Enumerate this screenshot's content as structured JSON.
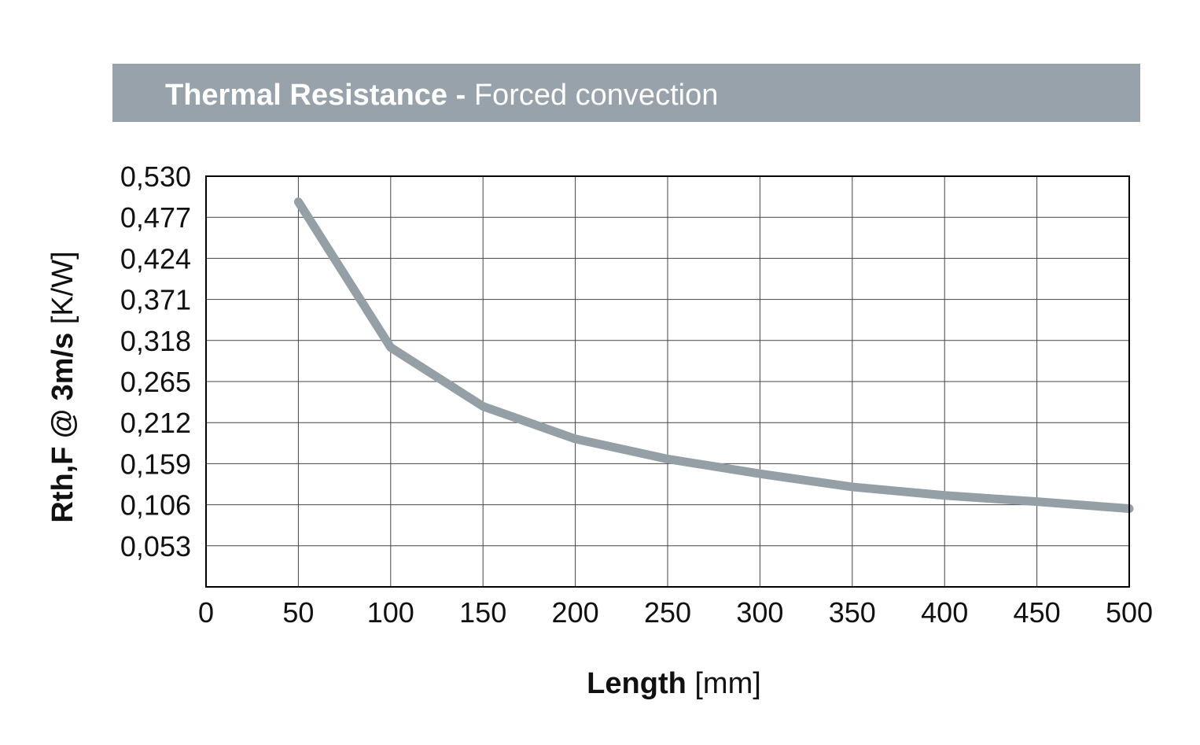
{
  "chart_data": {
    "type": "line",
    "title": "Thermal Resistance",
    "title_separator": " - ",
    "subtitle": "Forced convection",
    "xlabel": "Length",
    "xlabel_unit": "[mm]",
    "ylabel": "Rth,F @ 3m/s",
    "ylabel_unit": "[K/W]",
    "xlim": [
      0,
      500
    ],
    "ylim": [
      0,
      0.53
    ],
    "x_ticks": [
      "0",
      "50",
      "100",
      "150",
      "200",
      "250",
      "300",
      "350",
      "400",
      "450",
      "500"
    ],
    "y_ticks": [
      "0,053",
      "0,106",
      "0,159",
      "0,212",
      "0,265",
      "0,318",
      "0,371",
      "0,424",
      "0,477",
      "0,530"
    ],
    "grid": true,
    "colors": {
      "banner": "#97a2aa",
      "line": "#959fa6"
    },
    "series": [
      {
        "x": [
          50,
          100,
          150,
          200,
          250,
          300,
          350,
          400,
          450,
          500
        ],
        "y": [
          0.497,
          0.309,
          0.233,
          0.191,
          0.165,
          0.146,
          0.129,
          0.118,
          0.11,
          0.101
        ]
      }
    ]
  }
}
